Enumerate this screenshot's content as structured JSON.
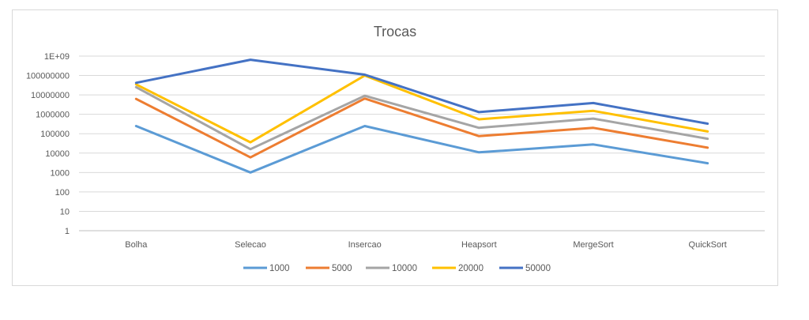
{
  "chart_data": {
    "type": "line",
    "title": "Trocas",
    "xlabel": "",
    "ylabel": "",
    "y_scale": "log",
    "ylim": [
      1,
      1000000000
    ],
    "y_ticks": [
      "1",
      "10",
      "100",
      "1000",
      "10000",
      "100000",
      "1000000",
      "10000000",
      "100000000",
      "1E+09"
    ],
    "categories": [
      "Bolha",
      "Selecao",
      "Insercao",
      "Heapsort",
      "MergeSort",
      "QuickSort"
    ],
    "grid": true,
    "legend_position": "bottom",
    "series": [
      {
        "name": "1000",
        "color": "#5B9BD5",
        "values": [
          250000,
          1000,
          250000,
          11000,
          28000,
          3000
        ]
      },
      {
        "name": "5000",
        "color": "#ED7D31",
        "values": [
          6200000,
          6000,
          6500000,
          75000,
          200000,
          19000
        ]
      },
      {
        "name": "10000",
        "color": "#A5A5A5",
        "values": [
          25000000,
          16000,
          9000000,
          200000,
          600000,
          55000
        ]
      },
      {
        "name": "20000",
        "color": "#FFC000",
        "values": [
          35000000,
          36000,
          100000000,
          550000,
          1500000,
          130000
        ]
      },
      {
        "name": "50000",
        "color": "#4472C4",
        "values": [
          42000000,
          650000000,
          110000000,
          1300000,
          3800000,
          330000
        ]
      }
    ]
  }
}
